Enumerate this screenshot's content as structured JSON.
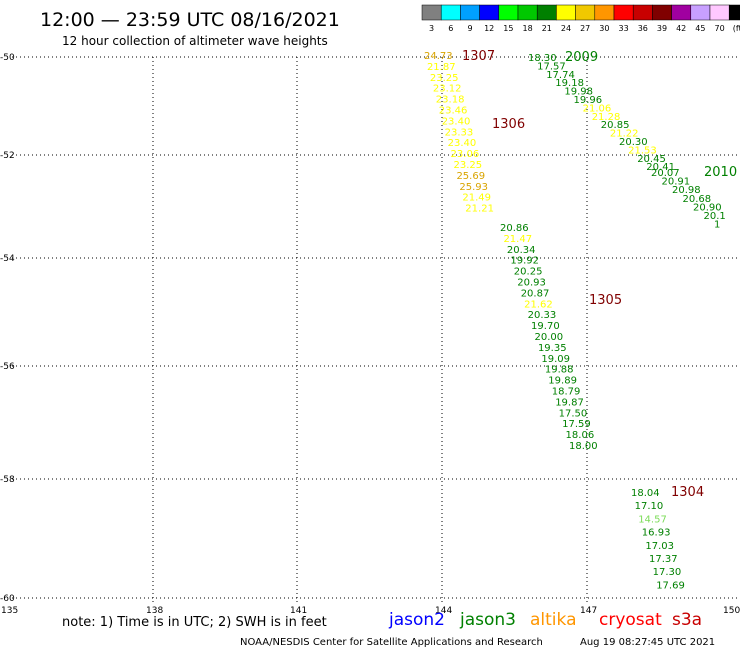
{
  "header": {
    "title": "12:00 — 23:59 UTC 08/16/2021",
    "subtitle": "12 hour collection of altimeter wave heights"
  },
  "legend": {
    "swatches": [
      {
        "color": "#808080",
        "label": "3"
      },
      {
        "color": "#00ffff",
        "label": "6"
      },
      {
        "color": "#00a0ff",
        "label": "9"
      },
      {
        "color": "#0000ff",
        "label": "12"
      },
      {
        "color": "#00ff00",
        "label": "15"
      },
      {
        "color": "#00c800",
        "label": "18"
      },
      {
        "color": "#008000",
        "label": "21"
      },
      {
        "color": "#ffff00",
        "label": "24"
      },
      {
        "color": "#f0c800",
        "label": "27"
      },
      {
        "color": "#ff9600",
        "label": "30"
      },
      {
        "color": "#ff0000",
        "label": "33"
      },
      {
        "color": "#c80000",
        "label": "36"
      },
      {
        "color": "#800000",
        "label": "39"
      },
      {
        "color": "#a000a0",
        "label": "42"
      },
      {
        "color": "#c8a0ff",
        "label": "45"
      },
      {
        "color": "#ffc8ff",
        "label": "70"
      },
      {
        "color": "#000000",
        "label": "(ft)"
      }
    ]
  },
  "axes": {
    "lat_labels": [
      "-50",
      "-52",
      "-54",
      "-56",
      "-58",
      "-60"
    ],
    "lon_labels": [
      "135",
      "138",
      "141",
      "144",
      "147",
      "150"
    ]
  },
  "tracks": [
    {
      "id": "1307",
      "label": "1307",
      "label_color": "#800000",
      "points": [
        {
          "v": "24.73",
          "c": "#d9a400"
        },
        {
          "v": "21.87",
          "c": "#ffff00"
        },
        {
          "v": "23.25",
          "c": "#ffff00"
        },
        {
          "v": "23.12",
          "c": "#ffff00"
        },
        {
          "v": "23.18",
          "c": "#ffff00"
        },
        {
          "v": "23.46",
          "c": "#ffff00"
        },
        {
          "v": "23.40",
          "c": "#ffff00"
        },
        {
          "v": "23.33",
          "c": "#ffff00"
        },
        {
          "v": "23.40",
          "c": "#ffff00"
        },
        {
          "v": "23.06",
          "c": "#ffff00"
        },
        {
          "v": "23.25",
          "c": "#ffff00"
        },
        {
          "v": "25.69",
          "c": "#d9a400"
        },
        {
          "v": "25.93",
          "c": "#d9a400"
        },
        {
          "v": "21.49",
          "c": "#ffff00"
        },
        {
          "v": "21.21",
          "c": "#ffff00"
        }
      ]
    },
    {
      "id": "1306",
      "label": "1306",
      "label_color": "#800000",
      "points": []
    },
    {
      "id": "1305",
      "label": "1305",
      "label_color": "#800000",
      "points": [
        {
          "v": "20.86",
          "c": "#008000"
        },
        {
          "v": "21.47",
          "c": "#ffff00"
        },
        {
          "v": "20.34",
          "c": "#008000"
        },
        {
          "v": "19.92",
          "c": "#008000"
        },
        {
          "v": "20.25",
          "c": "#008000"
        },
        {
          "v": "20.93",
          "c": "#008000"
        },
        {
          "v": "20.87",
          "c": "#008000"
        },
        {
          "v": "21.62",
          "c": "#ffff00"
        },
        {
          "v": "20.33",
          "c": "#008000"
        },
        {
          "v": "19.70",
          "c": "#008000"
        },
        {
          "v": "20.00",
          "c": "#008000"
        },
        {
          "v": "19.35",
          "c": "#008000"
        },
        {
          "v": "19.09",
          "c": "#008000"
        },
        {
          "v": "19.88",
          "c": "#008000"
        },
        {
          "v": "19.89",
          "c": "#008000"
        },
        {
          "v": "18.79",
          "c": "#008000"
        },
        {
          "v": "19.87",
          "c": "#008000"
        },
        {
          "v": "17.50",
          "c": "#008000"
        },
        {
          "v": "17.59",
          "c": "#008000"
        },
        {
          "v": "18.06",
          "c": "#008000"
        },
        {
          "v": "18.00",
          "c": "#008000"
        }
      ]
    },
    {
      "id": "1304",
      "label": "1304",
      "label_color": "#800000",
      "points": [
        {
          "v": "18.04",
          "c": "#008000"
        },
        {
          "v": "17.10",
          "c": "#008000"
        },
        {
          "v": "14.57",
          "c": "#7ddc5a"
        },
        {
          "v": "16.93",
          "c": "#008000"
        },
        {
          "v": "17.03",
          "c": "#008000"
        },
        {
          "v": "17.37",
          "c": "#008000"
        },
        {
          "v": "17.30",
          "c": "#008000"
        },
        {
          "v": "17.69",
          "c": "#008000"
        }
      ]
    },
    {
      "id": "2009",
      "label": "2009",
      "label_color": "#008000",
      "points": [
        {
          "v": "18.30",
          "c": "#008000"
        },
        {
          "v": "17.57",
          "c": "#008000"
        },
        {
          "v": "17.74",
          "c": "#008000"
        },
        {
          "v": "19.18",
          "c": "#008000"
        },
        {
          "v": "19.98",
          "c": "#008000"
        },
        {
          "v": "19.96",
          "c": "#008000"
        },
        {
          "v": "21.06",
          "c": "#ffff00"
        },
        {
          "v": "21.28",
          "c": "#ffff00"
        },
        {
          "v": "20.85",
          "c": "#008000"
        },
        {
          "v": "21.22",
          "c": "#ffff00"
        },
        {
          "v": "20.30",
          "c": "#008000"
        },
        {
          "v": "21.53",
          "c": "#ffff00"
        },
        {
          "v": "20.45",
          "c": "#008000"
        },
        {
          "v": "20.41",
          "c": "#008000"
        }
      ]
    },
    {
      "id": "2010",
      "label": "2010",
      "label_color": "#008000",
      "points": [
        {
          "v": "20.07",
          "c": "#008000"
        },
        {
          "v": "20.91",
          "c": "#008000"
        },
        {
          "v": "20.98",
          "c": "#008000"
        },
        {
          "v": "20.68",
          "c": "#008000"
        },
        {
          "v": "20.90",
          "c": "#008000"
        },
        {
          "v": "20.1",
          "c": "#008000"
        },
        {
          "v": "1",
          "c": "#008000"
        }
      ]
    }
  ],
  "footer": {
    "note": "note: 1) Time is in UTC; 2) SWH is in feet",
    "satellites": [
      {
        "name": "jason2",
        "color": "#0000ff"
      },
      {
        "name": "jason3",
        "color": "#008000"
      },
      {
        "name": "altika",
        "color": "#ff9600"
      },
      {
        "name": "cryosat",
        "color": "#ff0000"
      },
      {
        "name": "s3a",
        "color": "#c80000"
      }
    ],
    "credit": "NOAA/NESDIS Center for Satellite Applications and Research",
    "timestamp": "Aug 19 08:27:45 UTC 2021"
  }
}
